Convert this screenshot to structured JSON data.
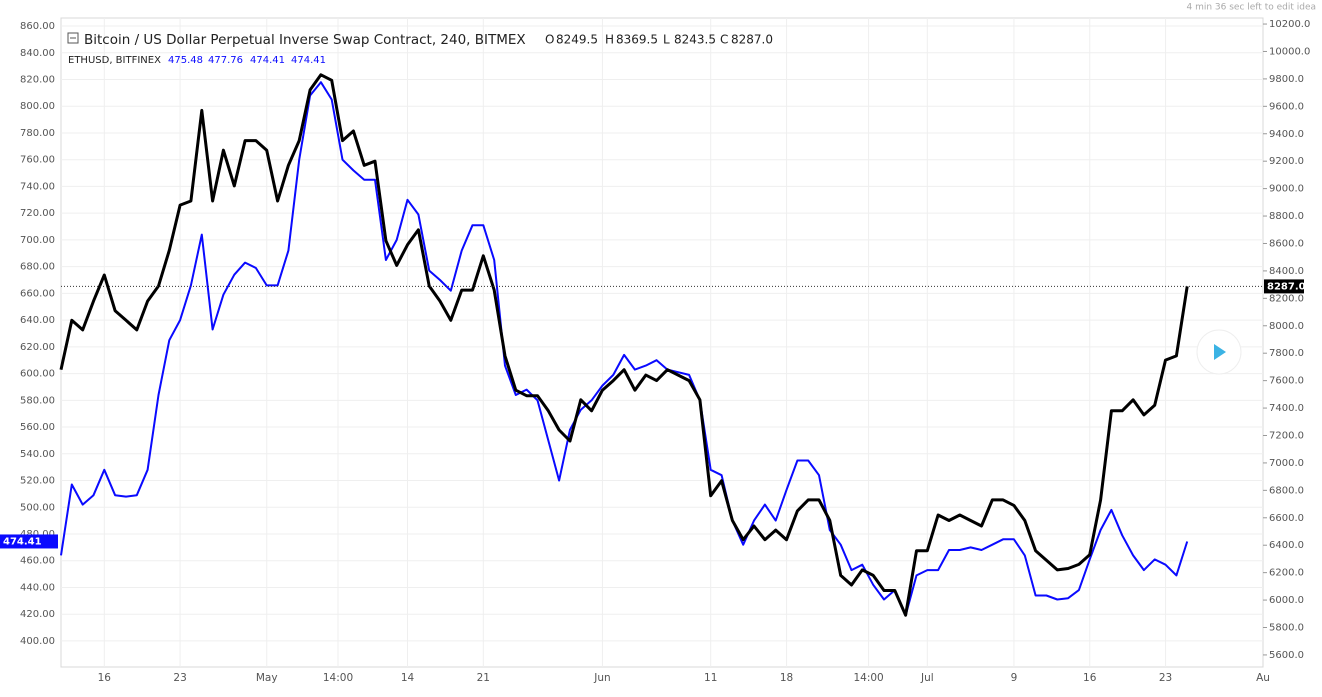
{
  "top_note": "4 min 36 sec left to edit idea",
  "chart_data": {
    "type": "line",
    "x": [
      0,
      1,
      2,
      3,
      4,
      5,
      6,
      7,
      8,
      9,
      10,
      11,
      12,
      13,
      14,
      15,
      16,
      17,
      18,
      19,
      20,
      21,
      22,
      23,
      24,
      25,
      26,
      27,
      28,
      29,
      30,
      31,
      32,
      33,
      34,
      35,
      36,
      37,
      38,
      39,
      40,
      41,
      42,
      43,
      44,
      45,
      46,
      47,
      48,
      49,
      50,
      51,
      52,
      53,
      54,
      55,
      56,
      57,
      58,
      59,
      60,
      61,
      62,
      63,
      64,
      65,
      66,
      67,
      68,
      69,
      70,
      71,
      72,
      73,
      74,
      75,
      76,
      77,
      78,
      79,
      80,
      81,
      82,
      83,
      84,
      85,
      86,
      87,
      88,
      89,
      90,
      91,
      92,
      93,
      94,
      95,
      96,
      97,
      98,
      99,
      100,
      101,
      102,
      103,
      104
    ],
    "xlim": [
      0,
      111
    ],
    "xticks": [
      {
        "value": 4,
        "label": "16"
      },
      {
        "value": 11,
        "label": "23"
      },
      {
        "value": 19,
        "label": "May"
      },
      {
        "value": 25.58,
        "label": "14:00"
      },
      {
        "value": 32,
        "label": "14"
      },
      {
        "value": 39,
        "label": "21"
      },
      {
        "value": 50,
        "label": "Jun"
      },
      {
        "value": 60,
        "label": "11"
      },
      {
        "value": 67,
        "label": "18"
      },
      {
        "value": 74.58,
        "label": "14:00"
      },
      {
        "value": 80,
        "label": "Jul"
      },
      {
        "value": 88,
        "label": "9"
      },
      {
        "value": 95,
        "label": "16"
      },
      {
        "value": 102,
        "label": "23"
      },
      {
        "value": 111,
        "label": "Au"
      }
    ],
    "ylim": [
      380.5,
      866
    ],
    "yticks": [
      {
        "value": 400,
        "label": "400.00"
      },
      {
        "value": 420,
        "label": "420.00"
      },
      {
        "value": 440,
        "label": "440.00"
      },
      {
        "value": 460,
        "label": "460.00"
      },
      {
        "value": 480,
        "label": "480.00"
      },
      {
        "value": 500,
        "label": "500.00"
      },
      {
        "value": 520,
        "label": "520.00"
      },
      {
        "value": 540,
        "label": "540.00"
      },
      {
        "value": 560,
        "label": "560.00"
      },
      {
        "value": 580,
        "label": "580.00"
      },
      {
        "value": 600,
        "label": "600.00"
      },
      {
        "value": 620,
        "label": "620.00"
      },
      {
        "value": 640,
        "label": "640.00"
      },
      {
        "value": 660,
        "label": "660.00"
      },
      {
        "value": 680,
        "label": "680.00"
      },
      {
        "value": 700,
        "label": "700.00"
      },
      {
        "value": 720,
        "label": "720.00"
      },
      {
        "value": 740,
        "label": "740.00"
      },
      {
        "value": 760,
        "label": "760.00"
      },
      {
        "value": 780,
        "label": "780.00"
      },
      {
        "value": 800,
        "label": "800.00"
      },
      {
        "value": 820,
        "label": "820.00"
      },
      {
        "value": 840,
        "label": "840.00"
      },
      {
        "value": 860,
        "label": "860.00"
      }
    ],
    "y2lim": [
      5512,
      10244
    ],
    "y2ticks": [
      {
        "value": 5600,
        "label": "5600.0"
      },
      {
        "value": 5800,
        "label": "5800.0"
      },
      {
        "value": 6000,
        "label": "6000.0"
      },
      {
        "value": 6200,
        "label": "6200.0"
      },
      {
        "value": 6400,
        "label": "6400.0"
      },
      {
        "value": 6600,
        "label": "6600.0"
      },
      {
        "value": 6800,
        "label": "6800.0"
      },
      {
        "value": 7000,
        "label": "7000.0"
      },
      {
        "value": 7200,
        "label": "7200.0"
      },
      {
        "value": 7400,
        "label": "7400.0"
      },
      {
        "value": 7600,
        "label": "7600.0"
      },
      {
        "value": 7800,
        "label": "7800.0"
      },
      {
        "value": 8000,
        "label": "8000.0"
      },
      {
        "value": 8200,
        "label": "8200.0"
      },
      {
        "value": 8400,
        "label": "8400.0"
      },
      {
        "value": 8600,
        "label": "8600.0"
      },
      {
        "value": 8800,
        "label": "8800.0"
      },
      {
        "value": 9000,
        "label": "9000.0"
      },
      {
        "value": 9200,
        "label": "9200.0"
      },
      {
        "value": 9400,
        "label": "9400.0"
      },
      {
        "value": 9600,
        "label": "9600.0"
      },
      {
        "value": 9800,
        "label": "9800.0"
      },
      {
        "value": 10000,
        "label": "10000.0"
      },
      {
        "value": 10200,
        "label": "10200.0"
      }
    ],
    "grid": true,
    "series": [
      {
        "name": "Bitcoin / US Dollar Perpetual Inverse Swap Contract, 240, BITMEX",
        "color": "#000000",
        "axis": "y2",
        "ohlc_keys": [
          "O",
          "H",
          "L",
          "C"
        ],
        "ohlc": [
          8249.5,
          8369.5,
          8243.5,
          {
            "value": 8287,
            "label": "8287.0"
          }
        ],
        "last_value": {
          "value": 8287,
          "label": "8287.0"
        },
        "values": [
          7680,
          8040,
          7970,
          8180,
          8370,
          8110,
          8040,
          7970,
          8180,
          8290,
          8550,
          8880,
          8910,
          9570,
          8910,
          9280,
          9020,
          9350,
          9350,
          9280,
          8910,
          9170,
          9350,
          9720,
          9830,
          9790,
          9350,
          9420,
          9170,
          9200,
          8620,
          8440,
          8590,
          8700,
          8290,
          8180,
          8040,
          8260,
          8260,
          8510,
          8260,
          7780,
          7530,
          7490,
          7490,
          7380,
          7240,
          7160,
          7460,
          7380,
          7530,
          7600,
          7680,
          7530,
          7640,
          7600,
          7680,
          7640,
          7600,
          7460,
          6760,
          6870,
          6580,
          6440,
          6540,
          6440,
          6510,
          6440,
          6650,
          6730,
          6730,
          6580,
          6180,
          6110,
          6220,
          6180,
          6070,
          6070,
          5890,
          6360,
          6360,
          6620,
          6580,
          6620,
          6580,
          6540,
          6730,
          6730,
          6690,
          6580,
          6360,
          6290,
          6220,
          6230,
          6260,
          6330,
          6730,
          7380,
          7380,
          7460,
          7350,
          7420,
          7750,
          7780,
          8287
        ]
      },
      {
        "name": "ETHUSD, BITFINEX",
        "color": "#0a0aff",
        "legend_values": [
          475.48,
          477.76,
          474.41,
          474.41
        ],
        "last_value": 474.41,
        "values": [
          464,
          517,
          502,
          509,
          528,
          509,
          508,
          509,
          528,
          584,
          625,
          640,
          666,
          704,
          633,
          659,
          674,
          683,
          679,
          666,
          666,
          692,
          760,
          808,
          818,
          805,
          760,
          752,
          745,
          745,
          685,
          700,
          730,
          719,
          677,
          670,
          662,
          692,
          711,
          711,
          685,
          606,
          584,
          588,
          580,
          550,
          520,
          558,
          573,
          580,
          591,
          599,
          614,
          603,
          606,
          610,
          603,
          601,
          599,
          580,
          528,
          524,
          490,
          472,
          490,
          502,
          490,
          513,
          535,
          535,
          524,
          483,
          472,
          453,
          457,
          442,
          431,
          438,
          419,
          449,
          453,
          453,
          468,
          468,
          470,
          468,
          472,
          476,
          476,
          464,
          434,
          434,
          431,
          432,
          438,
          461,
          483,
          498,
          479,
          464,
          453,
          461,
          457,
          449,
          474.41
        ]
      }
    ]
  }
}
